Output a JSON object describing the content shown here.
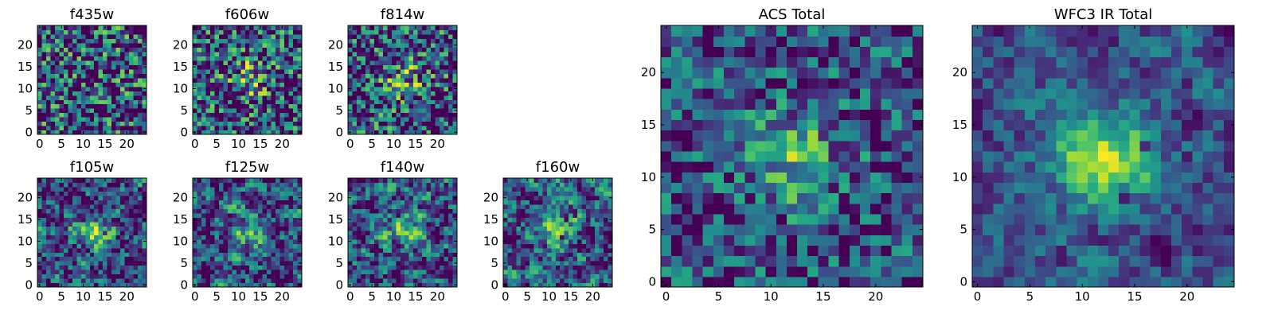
{
  "chart_data": [
    {
      "type": "heatmap",
      "title": "f435w",
      "xticks": [
        0,
        5,
        10,
        15,
        20
      ],
      "yticks": [
        0,
        5,
        10,
        15,
        20
      ],
      "grid_size": 25,
      "colormap": "viridis",
      "center_peak": 0.0,
      "noise_level": 0.95,
      "smoothness": 0
    },
    {
      "type": "heatmap",
      "title": "f606w",
      "xticks": [
        0,
        5,
        10,
        15,
        20
      ],
      "yticks": [
        0,
        5,
        10,
        15,
        20
      ],
      "grid_size": 25,
      "colormap": "viridis",
      "center_peak": 0.35,
      "noise_level": 0.9,
      "smoothness": 0
    },
    {
      "type": "heatmap",
      "title": "f814w",
      "xticks": [
        0,
        5,
        10,
        15,
        20
      ],
      "yticks": [
        0,
        5,
        10,
        15,
        20
      ],
      "grid_size": 25,
      "colormap": "viridis",
      "center_peak": 0.3,
      "noise_level": 0.9,
      "smoothness": 0
    },
    {
      "type": "heatmap",
      "title": "f105w",
      "xticks": [
        0,
        5,
        10,
        15,
        20
      ],
      "yticks": [
        0,
        5,
        10,
        15,
        20
      ],
      "grid_size": 25,
      "colormap": "viridis",
      "center_peak": 0.3,
      "noise_level": 0.8,
      "smoothness": 1
    },
    {
      "type": "heatmap",
      "title": "f125w",
      "xticks": [
        0,
        5,
        10,
        15,
        20
      ],
      "yticks": [
        0,
        5,
        10,
        15,
        20
      ],
      "grid_size": 25,
      "colormap": "viridis",
      "center_peak": 0.3,
      "noise_level": 0.8,
      "smoothness": 1
    },
    {
      "type": "heatmap",
      "title": "f140w",
      "xticks": [
        0,
        5,
        10,
        15,
        20
      ],
      "yticks": [
        0,
        5,
        10,
        15,
        20
      ],
      "grid_size": 25,
      "colormap": "viridis",
      "center_peak": 0.3,
      "noise_level": 0.8,
      "smoothness": 1
    },
    {
      "type": "heatmap",
      "title": "f160w",
      "xticks": [
        0,
        5,
        10,
        15,
        20
      ],
      "yticks": [
        0,
        5,
        10,
        15,
        20
      ],
      "grid_size": 25,
      "colormap": "viridis",
      "center_peak": 0.25,
      "noise_level": 0.8,
      "smoothness": 1
    },
    {
      "type": "heatmap",
      "title": "ACS Total",
      "xticks": [
        0,
        5,
        10,
        15,
        20
      ],
      "yticks": [
        0,
        5,
        10,
        15,
        20
      ],
      "grid_size": 25,
      "colormap": "viridis",
      "center_peak": 0.35,
      "noise_level": 0.6,
      "smoothness": 0
    },
    {
      "type": "heatmap",
      "title": "WFC3 IR Total",
      "xticks": [
        0,
        5,
        10,
        15,
        20
      ],
      "yticks": [
        0,
        5,
        10,
        15,
        20
      ],
      "grid_size": 25,
      "colormap": "viridis",
      "center_peak": 0.6,
      "noise_level": 0.45,
      "smoothness": 1
    }
  ]
}
